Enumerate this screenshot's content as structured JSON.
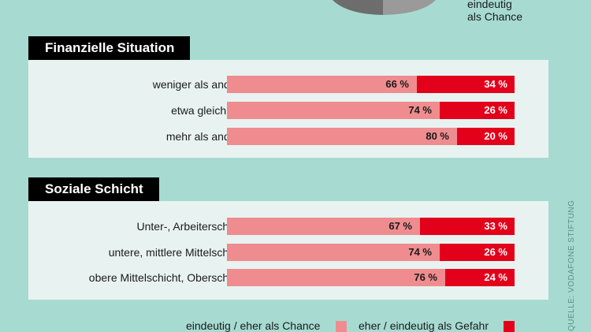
{
  "top_caption": [
    "eindeutig",
    "als Chance"
  ],
  "sections": [
    {
      "title": "Finanzielle Situation",
      "rows": [
        {
          "label": "weniger als andere",
          "chance": 66,
          "chance_label": "66 %",
          "gefahr": 34,
          "gefahr_label": "34 %"
        },
        {
          "label": "etwa gleich viel",
          "chance": 74,
          "chance_label": "74 %",
          "gefahr": 26,
          "gefahr_label": "26 %"
        },
        {
          "label": "mehr als andere",
          "chance": 80,
          "chance_label": "80 %",
          "gefahr": 20,
          "gefahr_label": "20 %"
        }
      ]
    },
    {
      "title": "Soziale Schicht",
      "rows": [
        {
          "label": "Unter-, Arbeiterschicht",
          "chance": 67,
          "chance_label": "67 %",
          "gefahr": 33,
          "gefahr_label": "33 %"
        },
        {
          "label": "untere, mittlere Mittelschicht",
          "chance": 74,
          "chance_label": "74 %",
          "gefahr": 26,
          "gefahr_label": "26 %"
        },
        {
          "label": "obere Mittelschicht, Oberschicht",
          "chance": 76,
          "chance_label": "76 %",
          "gefahr": 24,
          "gefahr_label": "24 %"
        }
      ]
    }
  ],
  "legend": {
    "chance": "eindeutig / eher als Chance",
    "gefahr": "eher / eindeutig als Gefahr"
  },
  "source": "QUELLE: VODAFONE STIFTUNG",
  "colors": {
    "background": "#a7dbd2",
    "panel": "#e8f3f1",
    "chance": "#ef8c8f",
    "gefahr": "#e3001b",
    "pie_dark": "#6d6d6d",
    "pie_light": "#9a9a9a"
  },
  "chart_data": {
    "type": "bar",
    "stacked": true,
    "orientation": "horizontal",
    "groups": [
      {
        "title": "Finanzielle Situation",
        "categories": [
          "weniger als andere",
          "etwa gleich viel",
          "mehr als andere"
        ],
        "series": [
          {
            "name": "eindeutig / eher als Chance",
            "values": [
              66,
              74,
              80
            ]
          },
          {
            "name": "eher / eindeutig als Gefahr",
            "values": [
              34,
              26,
              20
            ]
          }
        ]
      },
      {
        "title": "Soziale Schicht",
        "categories": [
          "Unter-, Arbeiterschicht",
          "untere, mittlere Mittelschicht",
          "obere Mittelschicht, Oberschicht"
        ],
        "series": [
          {
            "name": "eindeutig / eher als Chance",
            "values": [
              67,
              74,
              76
            ]
          },
          {
            "name": "eher / eindeutig als Gefahr",
            "values": [
              33,
              26,
              24
            ]
          }
        ]
      }
    ],
    "xlim": [
      0,
      100
    ],
    "legend_position": "bottom",
    "grid": false
  }
}
